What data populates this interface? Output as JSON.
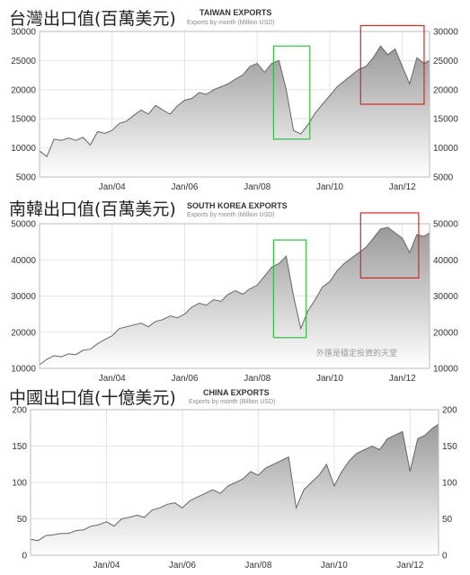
{
  "panels": [
    {
      "heading": "台灣出口值(百萬美元)",
      "title": "TAIWAN EXPORTS",
      "subtitle": "Exports by month (Million USD)",
      "watermark": ""
    },
    {
      "heading": "南韓出口值(百萬美元)",
      "title": "SOUTH KOREA EXPORTS",
      "subtitle": "Exports by month (Million USD)",
      "watermark": "外匯是穩定投資的天堂"
    },
    {
      "heading": "中國出口值(十億美元)",
      "title": "CHINA EXPORTS",
      "subtitle": "Exports by month (Billion USD)",
      "watermark": ""
    }
  ],
  "colors": {
    "line": "#666666",
    "fill_top": "#9a9a9a",
    "fill_bottom": "#ffffff",
    "highlight_green": "#33bb44",
    "highlight_red": "#dd2222"
  },
  "chart_data": [
    {
      "type": "area",
      "title": "TAIWAN EXPORTS",
      "subtitle": "Exports by month (Million USD)",
      "x_tick_labels": [
        "Jan/04",
        "Jan/06",
        "Jan/08",
        "Jan/10",
        "Jan/12"
      ],
      "x_tick_years": [
        2004,
        2006,
        2008,
        2010,
        2012
      ],
      "x_range": [
        2002.0,
        2012.75
      ],
      "ylim": [
        5000,
        30000
      ],
      "yticks": [
        5000,
        10000,
        15000,
        20000,
        25000,
        30000
      ],
      "grid": true,
      "right_axis": true,
      "series": [
        {
          "x": [
            2002.0,
            2002.2,
            2002.4,
            2002.6,
            2002.8,
            2003.0,
            2003.2,
            2003.4,
            2003.6,
            2003.8,
            2004.0,
            2004.2,
            2004.4,
            2004.6,
            2004.8,
            2005.0,
            2005.2,
            2005.4,
            2005.6,
            2005.8,
            2006.0,
            2006.2,
            2006.4,
            2006.6,
            2006.8,
            2007.0,
            2007.2,
            2007.4,
            2007.6,
            2007.8,
            2008.0,
            2008.2,
            2008.4,
            2008.6,
            2008.8,
            2009.0,
            2009.2,
            2009.4,
            2009.6,
            2009.8,
            2010.0,
            2010.2,
            2010.4,
            2010.6,
            2010.8,
            2011.0,
            2011.2,
            2011.4,
            2011.6,
            2011.8,
            2012.0,
            2012.2,
            2012.4,
            2012.6,
            2012.75
          ],
          "values": [
            9500,
            8500,
            11500,
            11300,
            11700,
            11300,
            11800,
            10500,
            12800,
            12500,
            13000,
            14200,
            14600,
            15600,
            16500,
            15800,
            17300,
            16500,
            15800,
            17200,
            18200,
            18500,
            19500,
            19200,
            20000,
            20500,
            21000,
            21800,
            22500,
            24000,
            24500,
            23000,
            24500,
            25000,
            20000,
            13000,
            12400,
            14000,
            16000,
            17500,
            19000,
            20500,
            21500,
            22500,
            23500,
            24000,
            25500,
            27500,
            26000,
            27000,
            24000,
            21000,
            25500,
            24500,
            25000
          ]
        }
      ],
      "highlights": [
        {
          "color": "green",
          "x_range": [
            2008.45,
            2009.45
          ],
          "y_range": [
            11500,
            27500
          ]
        },
        {
          "color": "red",
          "x_range": [
            2010.85,
            2012.6
          ],
          "y_range": [
            17500,
            31000
          ]
        }
      ]
    },
    {
      "type": "area",
      "title": "SOUTH KOREA EXPORTS",
      "subtitle": "Exports by month (Million USD)",
      "x_tick_labels": [
        "Jan/04",
        "Jan/06",
        "Jan/08",
        "Jan/10",
        "Jan/12"
      ],
      "x_tick_years": [
        2004,
        2006,
        2008,
        2010,
        2012
      ],
      "x_range": [
        2002.0,
        2012.75
      ],
      "ylim": [
        10000,
        50000
      ],
      "yticks": [
        10000,
        20000,
        30000,
        40000,
        50000
      ],
      "grid": true,
      "right_axis": true,
      "series": [
        {
          "x": [
            2002.0,
            2002.2,
            2002.4,
            2002.6,
            2002.8,
            2003.0,
            2003.2,
            2003.4,
            2003.6,
            2003.8,
            2004.0,
            2004.2,
            2004.4,
            2004.6,
            2004.8,
            2005.0,
            2005.2,
            2005.4,
            2005.6,
            2005.8,
            2006.0,
            2006.2,
            2006.4,
            2006.6,
            2006.8,
            2007.0,
            2007.2,
            2007.4,
            2007.6,
            2007.8,
            2008.0,
            2008.2,
            2008.4,
            2008.6,
            2008.8,
            2009.0,
            2009.2,
            2009.4,
            2009.6,
            2009.8,
            2010.0,
            2010.2,
            2010.4,
            2010.6,
            2010.8,
            2011.0,
            2011.2,
            2011.4,
            2011.6,
            2011.8,
            2012.0,
            2012.2,
            2012.4,
            2012.6,
            2012.75
          ],
          "values": [
            11000,
            12500,
            13500,
            13200,
            14000,
            13800,
            15000,
            15300,
            16800,
            18000,
            19000,
            21000,
            21500,
            22000,
            22500,
            21500,
            23000,
            23500,
            24500,
            24000,
            25000,
            27000,
            28000,
            27500,
            29000,
            28500,
            30500,
            31500,
            30500,
            32000,
            33000,
            35500,
            38000,
            39000,
            41000,
            30000,
            21000,
            26000,
            29000,
            32500,
            34000,
            37000,
            39000,
            40500,
            42000,
            43500,
            46000,
            48500,
            49000,
            47500,
            46000,
            42000,
            47000,
            46500,
            47500
          ]
        }
      ],
      "highlights": [
        {
          "color": "green",
          "x_range": [
            2008.45,
            2009.35
          ],
          "y_range": [
            18500,
            45500
          ]
        },
        {
          "color": "red",
          "x_range": [
            2010.85,
            2012.45
          ],
          "y_range": [
            35000,
            53000
          ]
        }
      ]
    },
    {
      "type": "area",
      "title": "CHINA EXPORTS",
      "subtitle": "Exports by month (Billion USD)",
      "x_tick_labels": [
        "Jan/04",
        "Jan/06",
        "Jan/08",
        "Jan/10",
        "Jan/12"
      ],
      "x_tick_years": [
        2004,
        2006,
        2008,
        2010,
        2012
      ],
      "x_range": [
        2002.0,
        2012.75
      ],
      "ylim": [
        0,
        200
      ],
      "yticks": [
        0,
        50,
        100,
        150,
        200
      ],
      "grid": true,
      "right_axis": true,
      "series": [
        {
          "x": [
            2002.0,
            2002.2,
            2002.4,
            2002.6,
            2002.8,
            2003.0,
            2003.2,
            2003.4,
            2003.6,
            2003.8,
            2004.0,
            2004.2,
            2004.4,
            2004.6,
            2004.8,
            2005.0,
            2005.2,
            2005.4,
            2005.6,
            2005.8,
            2006.0,
            2006.2,
            2006.4,
            2006.6,
            2006.8,
            2007.0,
            2007.2,
            2007.4,
            2007.6,
            2007.8,
            2008.0,
            2008.2,
            2008.4,
            2008.6,
            2008.8,
            2009.0,
            2009.2,
            2009.4,
            2009.6,
            2009.8,
            2010.0,
            2010.2,
            2010.4,
            2010.6,
            2010.8,
            2011.0,
            2011.2,
            2011.4,
            2011.6,
            2011.8,
            2012.0,
            2012.2,
            2012.4,
            2012.6,
            2012.75
          ],
          "values": [
            22,
            20,
            27,
            28,
            30,
            30,
            34,
            35,
            40,
            42,
            46,
            40,
            50,
            52,
            55,
            52,
            62,
            65,
            70,
            72,
            65,
            75,
            80,
            85,
            90,
            85,
            95,
            100,
            105,
            115,
            110,
            120,
            125,
            130,
            135,
            65,
            90,
            100,
            110,
            125,
            95,
            115,
            130,
            140,
            145,
            150,
            145,
            160,
            165,
            170,
            115,
            160,
            165,
            175,
            180
          ]
        }
      ],
      "highlights": []
    }
  ]
}
